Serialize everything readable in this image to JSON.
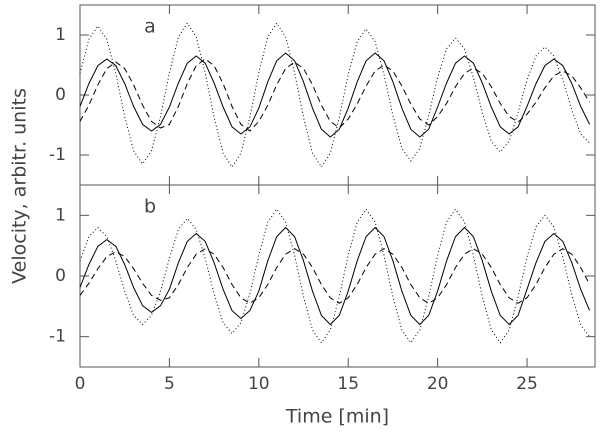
{
  "chart_data": [
    {
      "type": "line",
      "label": "a",
      "ylabel": "Velocity, arbitr. units",
      "x": [
        0,
        0.5,
        1,
        1.5,
        2,
        2.5,
        3,
        3.5,
        4,
        4.5,
        5,
        5.5,
        6,
        6.5,
        7,
        7.5,
        8,
        8.5,
        9,
        9.5,
        10,
        10.5,
        11,
        11.5,
        12,
        12.5,
        13,
        13.5,
        14,
        14.5,
        15,
        15.5,
        16,
        16.5,
        17,
        17.5,
        18,
        18.5,
        19,
        19.5,
        20,
        20.5,
        21,
        21.5,
        22,
        22.5,
        23,
        23.5,
        24,
        24.5,
        25,
        25.5,
        26,
        26.5,
        27,
        27.5,
        28,
        28.5
      ],
      "xlim": [
        0,
        28.8
      ],
      "xticks": [
        0,
        5,
        10,
        15,
        20,
        25
      ],
      "ylim": [
        -1.5,
        1.5
      ],
      "yticks": [
        -1,
        0,
        1
      ],
      "series": [
        {
          "color": "#000",
          "style": "solid",
          "values": [
            -0.19,
            0.19,
            0.49,
            0.6,
            0.49,
            0.19,
            -0.19,
            -0.49,
            -0.6,
            -0.49,
            -0.2,
            0.2,
            0.53,
            0.65,
            0.53,
            0.2,
            -0.2,
            -0.53,
            -0.65,
            -0.53,
            -0.22,
            0.22,
            0.57,
            0.7,
            0.57,
            0.22,
            -0.22,
            -0.57,
            -0.7,
            -0.57,
            -0.22,
            0.22,
            0.57,
            0.7,
            0.57,
            0.22,
            -0.22,
            -0.57,
            -0.7,
            -0.57,
            -0.2,
            0.2,
            0.53,
            0.65,
            0.53,
            0.2,
            -0.2,
            -0.53,
            -0.65,
            -0.53,
            -0.19,
            0.19,
            0.49,
            0.6,
            0.49,
            0.19,
            -0.19,
            -0.49
          ]
        },
        {
          "color": "#000",
          "style": "dotted",
          "values": [
            0.36,
            0.93,
            1.15,
            0.93,
            0.36,
            -0.36,
            -0.93,
            -1.15,
            -0.93,
            -0.36,
            0.37,
            0.97,
            1.2,
            0.97,
            0.37,
            -0.37,
            -0.97,
            -1.2,
            -0.97,
            -0.37,
            0.37,
            0.97,
            1.2,
            0.97,
            0.37,
            -0.37,
            -0.97,
            -1.2,
            -0.97,
            -0.37,
            0.34,
            0.89,
            1.1,
            0.89,
            0.34,
            -0.34,
            -0.89,
            -1.1,
            -0.89,
            -0.34,
            0.29,
            0.77,
            0.95,
            0.77,
            0.29,
            -0.29,
            -0.77,
            -0.95,
            -0.77,
            -0.29,
            0.25,
            0.65,
            0.8,
            0.65,
            0.25,
            -0.25,
            -0.65,
            -0.8
          ]
        },
        {
          "color": "#000",
          "style": "dashed",
          "values": [
            -0.44,
            -0.17,
            0.17,
            0.44,
            0.55,
            0.44,
            0.17,
            -0.17,
            -0.44,
            -0.55,
            -0.49,
            -0.19,
            0.19,
            0.49,
            0.6,
            0.49,
            0.19,
            -0.19,
            -0.49,
            -0.6,
            -0.44,
            -0.17,
            0.17,
            0.44,
            0.55,
            0.44,
            0.17,
            -0.17,
            -0.44,
            -0.55,
            -0.4,
            -0.15,
            0.15,
            0.4,
            0.5,
            0.4,
            0.15,
            -0.15,
            -0.4,
            -0.5,
            -0.36,
            -0.14,
            0.14,
            0.36,
            0.45,
            0.36,
            0.14,
            -0.14,
            -0.36,
            -0.45,
            -0.32,
            -0.12,
            0.12,
            0.32,
            0.4,
            0.32,
            0.12,
            -0.12
          ]
        }
      ]
    },
    {
      "type": "line",
      "label": "b",
      "xlabel": "Time [min]",
      "x": [
        0,
        0.5,
        1,
        1.5,
        2,
        2.5,
        3,
        3.5,
        4,
        4.5,
        5,
        5.5,
        6,
        6.5,
        7,
        7.5,
        8,
        8.5,
        9,
        9.5,
        10,
        10.5,
        11,
        11.5,
        12,
        12.5,
        13,
        13.5,
        14,
        14.5,
        15,
        15.5,
        16,
        16.5,
        17,
        17.5,
        18,
        18.5,
        19,
        19.5,
        20,
        20.5,
        21,
        21.5,
        22,
        22.5,
        23,
        23.5,
        24,
        24.5,
        25,
        25.5,
        26,
        26.5,
        27,
        27.5,
        28,
        28.5
      ],
      "xlim": [
        0,
        28.8
      ],
      "xticks": [
        0,
        5,
        10,
        15,
        20,
        25
      ],
      "ylim": [
        -1.5,
        1.5
      ],
      "yticks": [
        -1,
        0,
        1
      ],
      "series": [
        {
          "color": "#000",
          "style": "solid",
          "values": [
            -0.19,
            0.19,
            0.49,
            0.6,
            0.49,
            0.19,
            -0.19,
            -0.49,
            -0.6,
            -0.49,
            -0.22,
            0.22,
            0.57,
            0.7,
            0.57,
            0.22,
            -0.22,
            -0.57,
            -0.7,
            -0.57,
            -0.25,
            0.25,
            0.65,
            0.8,
            0.65,
            0.25,
            -0.25,
            -0.65,
            -0.8,
            -0.65,
            -0.25,
            0.25,
            0.65,
            0.8,
            0.65,
            0.25,
            -0.25,
            -0.65,
            -0.8,
            -0.65,
            -0.25,
            0.25,
            0.65,
            0.8,
            0.65,
            0.25,
            -0.25,
            -0.65,
            -0.8,
            -0.65,
            -0.22,
            0.22,
            0.57,
            0.7,
            0.57,
            0.22,
            -0.22,
            -0.57
          ]
        },
        {
          "color": "#000",
          "style": "dotted",
          "values": [
            0.25,
            0.65,
            0.8,
            0.65,
            0.25,
            -0.25,
            -0.65,
            -0.8,
            -0.65,
            -0.25,
            0.29,
            0.77,
            0.95,
            0.77,
            0.29,
            -0.29,
            -0.77,
            -0.95,
            -0.77,
            -0.29,
            0.34,
            0.89,
            1.1,
            0.89,
            0.34,
            -0.34,
            -0.89,
            -1.1,
            -0.89,
            -0.34,
            0.34,
            0.89,
            1.1,
            0.89,
            0.34,
            -0.34,
            -0.89,
            -1.1,
            -0.89,
            -0.34,
            0.34,
            0.89,
            1.1,
            0.89,
            0.34,
            -0.34,
            -0.89,
            -1.1,
            -0.89,
            -0.34,
            0.31,
            0.81,
            1.0,
            0.81,
            0.31,
            -0.31,
            -0.81,
            -1.0
          ]
        },
        {
          "color": "#000",
          "style": "dashed",
          "values": [
            -0.32,
            -0.12,
            0.12,
            0.32,
            0.4,
            0.32,
            0.12,
            -0.12,
            -0.32,
            -0.4,
            -0.36,
            -0.14,
            0.14,
            0.36,
            0.45,
            0.36,
            0.14,
            -0.14,
            -0.36,
            -0.45,
            -0.36,
            -0.14,
            0.14,
            0.36,
            0.45,
            0.36,
            0.14,
            -0.14,
            -0.36,
            -0.45,
            -0.36,
            -0.14,
            0.14,
            0.36,
            0.45,
            0.36,
            0.14,
            -0.14,
            -0.36,
            -0.45,
            -0.36,
            -0.14,
            0.14,
            0.36,
            0.45,
            0.36,
            0.14,
            -0.14,
            -0.36,
            -0.45,
            -0.36,
            -0.14,
            0.14,
            0.36,
            0.45,
            0.36,
            0.14,
            -0.14
          ]
        }
      ]
    }
  ]
}
